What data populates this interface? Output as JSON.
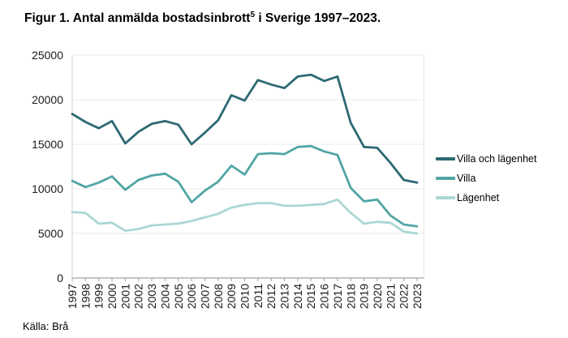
{
  "header": {
    "title_prefix": "Figur 1. Antal anmälda bostadsinbrott",
    "footnote_marker": "5",
    "title_suffix": " i Sverige 1997–2023."
  },
  "footer": {
    "source": "Källa: Brå"
  },
  "colors": {
    "villa_och_lagenhet": "#2d6973",
    "villa": "#50a5a4",
    "lagenhet": "#aad7d4",
    "grid": "#ebebeb",
    "axis": "#a0a0a0",
    "y_axis_line": "#d4d4d4",
    "plot_right_border": "#e4e4e4",
    "tick_text": "#1a1a1a"
  },
  "chart_data": {
    "type": "line",
    "title": "Figur 1. Antal anmälda bostadsinbrott⁵ i Sverige 1997–2023.",
    "source": "Källa: Brå",
    "categories": [
      "1997",
      "1998",
      "1999",
      "2000",
      "2001",
      "2002",
      "2003",
      "2004",
      "2005",
      "2006",
      "2007",
      "2008",
      "2009",
      "2010",
      "2011",
      "2012",
      "2013",
      "2014",
      "2015",
      "2016",
      "2017",
      "2018",
      "2019",
      "2020",
      "2021",
      "2022",
      "2023"
    ],
    "series": [
      {
        "name": "Villa och lägenhet",
        "color": "#2d6973",
        "values": [
          18400,
          17500,
          16800,
          17600,
          15100,
          16400,
          17300,
          17600,
          17200,
          15000,
          16300,
          17700,
          20500,
          19900,
          22200,
          21700,
          21300,
          22600,
          22800,
          22100,
          22600,
          17400,
          14700,
          14600,
          12900,
          11000,
          10700
        ]
      },
      {
        "name": "Villa",
        "color": "#50a5a4",
        "values": [
          10900,
          10200,
          10700,
          11400,
          9900,
          11000,
          11500,
          11700,
          10800,
          8500,
          9800,
          10800,
          12600,
          11600,
          13900,
          14000,
          13900,
          14700,
          14800,
          14200,
          13800,
          10100,
          8600,
          8800,
          7000,
          6000,
          5800
        ]
      },
      {
        "name": "Lägenhet",
        "color": "#aad7d4",
        "values": [
          7400,
          7300,
          6100,
          6200,
          5300,
          5500,
          5900,
          6000,
          6100,
          6400,
          6800,
          7200,
          7900,
          8200,
          8400,
          8400,
          8100,
          8100,
          8200,
          8300,
          8800,
          7300,
          6100,
          6300,
          6200,
          5200,
          5000
        ]
      }
    ],
    "xlabel": "",
    "ylabel": "",
    "ylim": [
      0,
      25000
    ],
    "y_ticks": [
      0,
      5000,
      10000,
      15000,
      20000,
      25000
    ],
    "grid": "horizontal",
    "legend_position": "right",
    "x_tick_rotation": -90
  }
}
